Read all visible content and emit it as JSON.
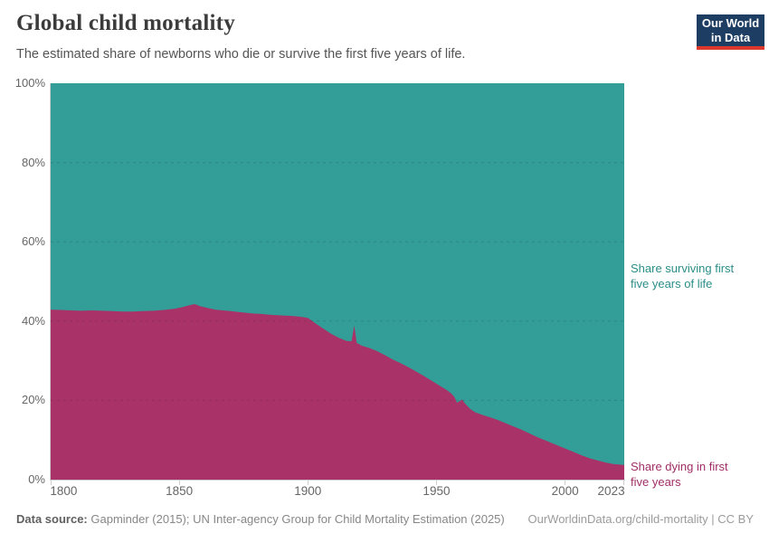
{
  "header": {
    "title": "Global child mortality",
    "subtitle": "The estimated share of newborns who die or survive the first five years of life.",
    "logo": {
      "line1": "Our World",
      "line2": "in Data"
    }
  },
  "annotations": {
    "surviving_lines": [
      "Share surviving first",
      "five years of life"
    ],
    "dying_lines": [
      "Share dying in first",
      "five years"
    ]
  },
  "footer": {
    "source_label": "Data source:",
    "source_text": "Gapminder (2015); UN Inter-agency Group for Child Mortality Estimation (2025)",
    "link_text": "OurWorldinData.org/child-mortality | CC BY"
  },
  "colors": {
    "dying_area": "#a93368",
    "surviving_area": "#339d97",
    "dying_text": "#a02e66",
    "surviving_text": "#2b8d87",
    "axis": "#cfcfcf",
    "tick_label": "#666666",
    "logo_bg": "#1d3d63",
    "logo_red": "#dc382c",
    "title_text": "#3b3b3b"
  },
  "chart_data": {
    "type": "area",
    "stacked": true,
    "title": "Global child mortality",
    "xlabel": "",
    "ylabel": "",
    "unit": "%",
    "x_range": [
      1800,
      2023
    ],
    "y_range": [
      0,
      100
    ],
    "x_tick_values": [
      1800,
      1850,
      1900,
      1950,
      2000,
      2023
    ],
    "x_tick_labels": [
      "1800",
      "1850",
      "1900",
      "1950",
      "2000",
      "2023"
    ],
    "y_tick_values": [
      0,
      20,
      40,
      60,
      80,
      100
    ],
    "y_tick_labels": [
      "0%",
      "20%",
      "40%",
      "60%",
      "80%",
      "100%"
    ],
    "grid_values": [
      20,
      40,
      60,
      80
    ],
    "grid_style": "dashed",
    "legend_position": "right-annotations",
    "series": [
      {
        "name": "Share dying in first five years",
        "color": "#a93368",
        "points": [
          [
            1800,
            42.9
          ],
          [
            1804,
            42.8
          ],
          [
            1808,
            42.7
          ],
          [
            1812,
            42.6
          ],
          [
            1816,
            42.7
          ],
          [
            1820,
            42.6
          ],
          [
            1824,
            42.5
          ],
          [
            1828,
            42.4
          ],
          [
            1832,
            42.4
          ],
          [
            1836,
            42.5
          ],
          [
            1840,
            42.6
          ],
          [
            1844,
            42.8
          ],
          [
            1848,
            43.1
          ],
          [
            1851,
            43.5
          ],
          [
            1854,
            44.0
          ],
          [
            1856,
            44.3
          ],
          [
            1858,
            43.8
          ],
          [
            1861,
            43.3
          ],
          [
            1864,
            42.9
          ],
          [
            1867,
            42.7
          ],
          [
            1870,
            42.5
          ],
          [
            1873,
            42.3
          ],
          [
            1876,
            42.1
          ],
          [
            1879,
            41.9
          ],
          [
            1882,
            41.8
          ],
          [
            1885,
            41.6
          ],
          [
            1888,
            41.5
          ],
          [
            1891,
            41.4
          ],
          [
            1894,
            41.3
          ],
          [
            1897,
            41.1
          ],
          [
            1900,
            40.8
          ],
          [
            1903,
            39.4
          ],
          [
            1906,
            38.1
          ],
          [
            1909,
            36.8
          ],
          [
            1912,
            35.8
          ],
          [
            1915,
            35.0
          ],
          [
            1917,
            34.9
          ],
          [
            1918,
            38.9
          ],
          [
            1919,
            34.5
          ],
          [
            1921,
            33.8
          ],
          [
            1924,
            33.2
          ],
          [
            1927,
            32.4
          ],
          [
            1930,
            31.4
          ],
          [
            1933,
            30.3
          ],
          [
            1936,
            29.4
          ],
          [
            1939,
            28.4
          ],
          [
            1942,
            27.3
          ],
          [
            1945,
            26.2
          ],
          [
            1948,
            25.0
          ],
          [
            1951,
            23.8
          ],
          [
            1954,
            22.6
          ],
          [
            1956,
            21.6
          ],
          [
            1957,
            20.8
          ],
          [
            1958,
            19.4
          ],
          [
            1960,
            20.2
          ],
          [
            1961,
            19.3
          ],
          [
            1963,
            17.9
          ],
          [
            1965,
            17.0
          ],
          [
            1968,
            16.3
          ],
          [
            1971,
            15.7
          ],
          [
            1974,
            15.0
          ],
          [
            1977,
            14.2
          ],
          [
            1980,
            13.4
          ],
          [
            1983,
            12.6
          ],
          [
            1986,
            11.7
          ],
          [
            1989,
            10.8
          ],
          [
            1992,
            10.0
          ],
          [
            1995,
            9.2
          ],
          [
            1998,
            8.4
          ],
          [
            2001,
            7.6
          ],
          [
            2004,
            6.8
          ],
          [
            2007,
            6.0
          ],
          [
            2010,
            5.3
          ],
          [
            2013,
            4.8
          ],
          [
            2016,
            4.3
          ],
          [
            2019,
            3.9
          ],
          [
            2023,
            3.7
          ]
        ]
      },
      {
        "name": "Share surviving first five years of life",
        "color": "#339d97",
        "points": [
          [
            1800,
            57.1
          ],
          [
            1804,
            57.2
          ],
          [
            1808,
            57.3
          ],
          [
            1812,
            57.4
          ],
          [
            1816,
            57.3
          ],
          [
            1820,
            57.4
          ],
          [
            1824,
            57.5
          ],
          [
            1828,
            57.6
          ],
          [
            1832,
            57.6
          ],
          [
            1836,
            57.5
          ],
          [
            1840,
            57.4
          ],
          [
            1844,
            57.2
          ],
          [
            1848,
            56.9
          ],
          [
            1851,
            56.5
          ],
          [
            1854,
            56.0
          ],
          [
            1856,
            55.7
          ],
          [
            1858,
            56.2
          ],
          [
            1861,
            56.7
          ],
          [
            1864,
            57.1
          ],
          [
            1867,
            57.3
          ],
          [
            1870,
            57.5
          ],
          [
            1873,
            57.7
          ],
          [
            1876,
            57.9
          ],
          [
            1879,
            58.1
          ],
          [
            1882,
            58.2
          ],
          [
            1885,
            58.4
          ],
          [
            1888,
            58.5
          ],
          [
            1891,
            58.6
          ],
          [
            1894,
            58.7
          ],
          [
            1897,
            58.9
          ],
          [
            1900,
            59.2
          ],
          [
            1903,
            60.6
          ],
          [
            1906,
            61.9
          ],
          [
            1909,
            63.2
          ],
          [
            1912,
            64.2
          ],
          [
            1915,
            65.0
          ],
          [
            1917,
            65.1
          ],
          [
            1918,
            61.1
          ],
          [
            1919,
            65.5
          ],
          [
            1921,
            66.2
          ],
          [
            1924,
            66.8
          ],
          [
            1927,
            67.6
          ],
          [
            1930,
            68.6
          ],
          [
            1933,
            69.7
          ],
          [
            1936,
            70.6
          ],
          [
            1939,
            71.6
          ],
          [
            1942,
            72.7
          ],
          [
            1945,
            73.8
          ],
          [
            1948,
            75.0
          ],
          [
            1951,
            76.2
          ],
          [
            1954,
            77.4
          ],
          [
            1956,
            78.4
          ],
          [
            1957,
            79.2
          ],
          [
            1958,
            80.6
          ],
          [
            1960,
            79.8
          ],
          [
            1961,
            80.7
          ],
          [
            1963,
            82.1
          ],
          [
            1965,
            83.0
          ],
          [
            1968,
            83.7
          ],
          [
            1971,
            84.3
          ],
          [
            1974,
            85.0
          ],
          [
            1977,
            85.8
          ],
          [
            1980,
            86.6
          ],
          [
            1983,
            87.4
          ],
          [
            1986,
            88.3
          ],
          [
            1989,
            89.2
          ],
          [
            1992,
            90.0
          ],
          [
            1995,
            90.8
          ],
          [
            1998,
            91.6
          ],
          [
            2001,
            92.4
          ],
          [
            2004,
            93.2
          ],
          [
            2007,
            94.0
          ],
          [
            2010,
            94.7
          ],
          [
            2013,
            95.2
          ],
          [
            2016,
            95.7
          ],
          [
            2019,
            96.1
          ],
          [
            2023,
            96.3
          ]
        ]
      }
    ]
  }
}
